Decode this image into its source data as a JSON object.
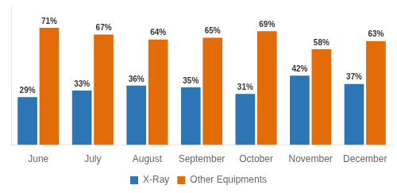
{
  "chart_data": {
    "type": "bar",
    "categories": [
      "June",
      "July",
      "August",
      "September",
      "October",
      "November",
      "December"
    ],
    "series": [
      {
        "name": "X-Ray",
        "color": "#2e75b6",
        "values": [
          29,
          33,
          36,
          35,
          31,
          42,
          37
        ],
        "value_labels": [
          "29%",
          "33%",
          "36%",
          "35%",
          "31%",
          "42%",
          "37%"
        ]
      },
      {
        "name": "Other Equipments",
        "color": "#e36c09",
        "values": [
          71,
          67,
          64,
          65,
          69,
          58,
          63
        ],
        "value_labels": [
          "71%",
          "67%",
          "64%",
          "65%",
          "69%",
          "58%",
          "63%"
        ]
      }
    ],
    "ylim": [
      0,
      85
    ],
    "grid": false,
    "legend": "bottom",
    "data_labels": true,
    "tick_labels": "x"
  }
}
